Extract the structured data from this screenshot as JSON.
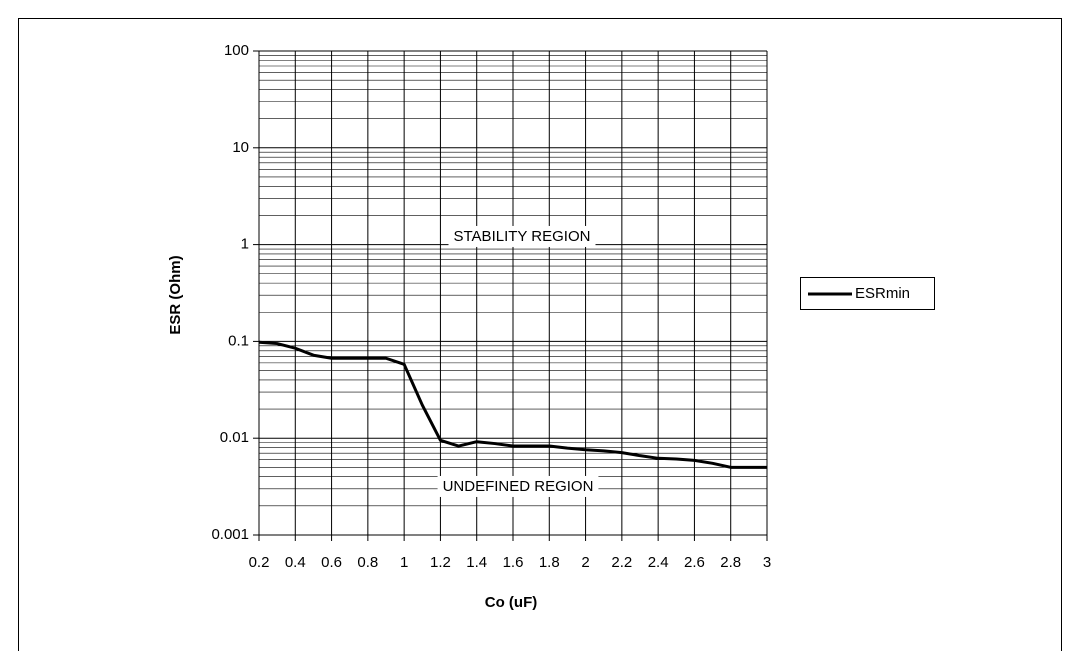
{
  "chart_data": {
    "type": "line",
    "ylabel": "ESR (Ohm)",
    "xlabel": "Co (uF)",
    "x": [
      0.2,
      0.3,
      0.4,
      0.5,
      0.6,
      0.7,
      0.8,
      0.9,
      1.0,
      1.1,
      1.2,
      1.3,
      1.4,
      1.5,
      1.6,
      1.7,
      1.8,
      1.9,
      2.0,
      2.1,
      2.2,
      2.3,
      2.4,
      2.5,
      2.6,
      2.7,
      2.8,
      2.9,
      3.0
    ],
    "series": [
      {
        "name": "ESRmin",
        "color": "#000000",
        "values": [
          0.098,
          0.095,
          0.085,
          0.072,
          0.067,
          0.067,
          0.067,
          0.067,
          0.058,
          0.022,
          0.0095,
          0.0083,
          0.0092,
          0.0088,
          0.0083,
          0.0083,
          0.0083,
          0.0079,
          0.0076,
          0.0074,
          0.0071,
          0.0066,
          0.0062,
          0.0061,
          0.0059,
          0.0055,
          0.005,
          0.005,
          0.005
        ]
      }
    ],
    "annotations": [
      "STABILITY REGION",
      "UNDEFINED REGION"
    ],
    "xlim": [
      0.2,
      3
    ],
    "xticks": [
      0.2,
      0.4,
      0.6,
      0.8,
      1,
      1.2,
      1.4,
      1.6,
      1.8,
      2,
      2.2,
      2.4,
      2.6,
      2.8,
      3
    ],
    "ylim": [
      0.001,
      100
    ],
    "yticks": [
      0.001,
      0.01,
      0.1,
      1,
      10,
      100
    ],
    "log_y": true,
    "grid": true,
    "minor_grid": true,
    "legend": "right"
  }
}
